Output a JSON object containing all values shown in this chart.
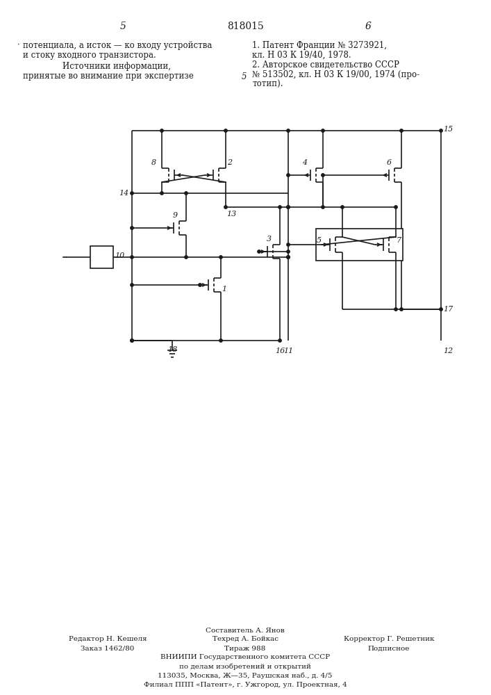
{
  "page_number_left": "5",
  "page_number_center": "818015",
  "page_number_right": "6",
  "text_left_line1": "потенциала, а исток — ко входу устройства",
  "text_left_line2": "и стоку входного транзистора.",
  "text_left_line3": "Источники информации,",
  "text_left_line4": "принятые во внимание при экспертизе",
  "text_right_line1": "1. Патент Франции № 3273921,",
  "text_right_line2": "кл. Н 03 К 19/40, 1978.",
  "text_right_line3": "2. Авторское свидетельство СССР",
  "text_right_line4": "№ 513502, кл. Н 03 К 19/00, 1974 (про-",
  "text_right_line5": "тотип).",
  "text_number_5": "5",
  "footer1": "Составитель А. Янов",
  "footer2": "Редактор Н. Кешеля",
  "footer3": "Техред А. Бойкас",
  "footer4": "Корректор Г. Решетник",
  "footer5": "Заказ 1462/80",
  "footer6": "Тираж 988",
  "footer7": "Подписное",
  "footer8": "ВНИИПИ Государственного комитета СССР",
  "footer9": "по делам изобретений и открытий",
  "footer10": "113035, Москва, Ж—35, Раушская наб., д. 4/5",
  "footer11": "Филиал ППП «Патент», г. Ужгород, ул. Проектная, 4",
  "bg_color": "#ffffff",
  "line_color": "#1a1a1a"
}
